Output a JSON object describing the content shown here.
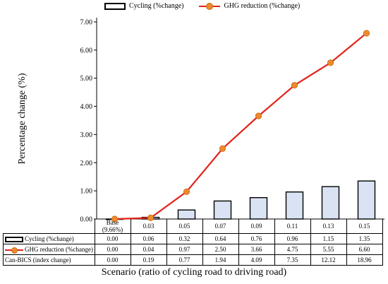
{
  "chart_data": {
    "type": "bar",
    "categories": [
      "Base\n(9.66%)",
      "0.03",
      "0.05",
      "0.07",
      "0.09",
      "0.11",
      "0.13",
      "0.15"
    ],
    "series": [
      {
        "name": "Cycling (%change)",
        "type": "bar",
        "values": [
          0.0,
          0.06,
          0.32,
          0.64,
          0.76,
          0.96,
          1.15,
          1.35
        ],
        "color": "#dae3f3"
      },
      {
        "name": "GHG reduction (%change)",
        "type": "line",
        "values": [
          0.0,
          0.04,
          0.97,
          2.5,
          3.66,
          4.75,
          5.55,
          6.6
        ],
        "color": "#e2231a",
        "marker_color": "#ee8a2d"
      }
    ],
    "table_rows": [
      {
        "label": "Cycling (%change)",
        "values": [
          "0.00",
          "0.06",
          "0.32",
          "0.64",
          "0.76",
          "0.96",
          "1.15",
          "1.35"
        ]
      },
      {
        "label": "GHG reduction (%change)",
        "values": [
          "0.00",
          "0.04",
          "0.97",
          "2.50",
          "3.66",
          "4.75",
          "5.55",
          "6.60"
        ]
      },
      {
        "label": "Can-BICS (index change)",
        "values": [
          "0.00",
          "0.19",
          "0.77",
          "1.94",
          "4.09",
          "7.35",
          "12.12",
          "18.96"
        ]
      }
    ],
    "ylim": [
      0,
      7
    ],
    "yticks": [
      "0.00",
      "1.00",
      "2.00",
      "3.00",
      "4.00",
      "5.00",
      "6.00",
      "7.00"
    ],
    "ylabel": "Percentage change (%)",
    "xlabel": "Scenario (ratio of cycling road to driving road)",
    "legend": "top",
    "grid": false
  }
}
